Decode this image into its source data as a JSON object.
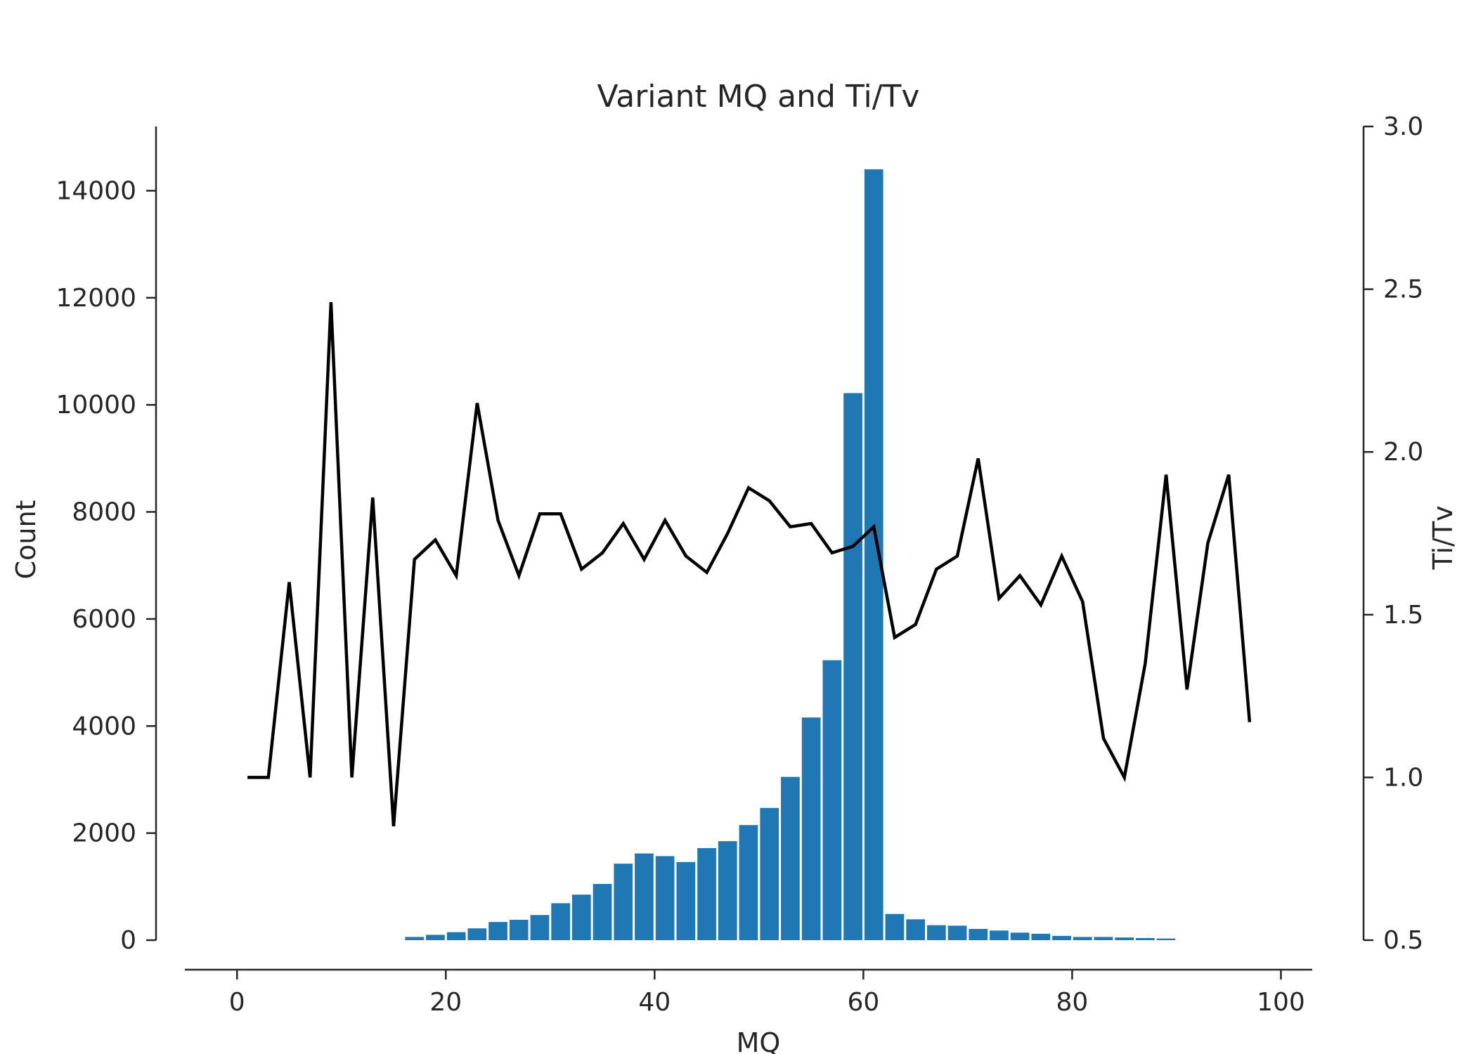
{
  "chart_data": {
    "type": "bar",
    "title": "Variant MQ and Ti/Tv",
    "xlabel": "MQ",
    "ylabel": "Count",
    "y2label": "Ti/Tv",
    "xlim": [
      -5,
      103
    ],
    "ylim": [
      0,
      15200
    ],
    "y2lim": [
      0.5,
      3.0
    ],
    "xticks": [
      0,
      20,
      40,
      60,
      80,
      100
    ],
    "yticks": [
      0,
      2000,
      4000,
      6000,
      8000,
      10000,
      12000,
      14000
    ],
    "y2ticks": [
      "0.5",
      "1.0",
      "1.5",
      "2.0",
      "2.5",
      "3.0"
    ],
    "grid": false,
    "colors": {
      "bars": "#1f77b4",
      "line": "#000000",
      "axes": "#262626"
    },
    "bar_series": {
      "name": "Count",
      "bin_width": 2,
      "x": [
        17,
        19,
        21,
        23,
        25,
        27,
        29,
        31,
        33,
        35,
        37,
        39,
        41,
        43,
        45,
        47,
        49,
        51,
        53,
        55,
        57,
        59,
        61,
        63,
        65,
        67,
        69,
        71,
        73,
        75,
        77,
        79,
        81,
        83,
        85,
        87,
        89
      ],
      "values": [
        60,
        100,
        150,
        220,
        340,
        380,
        470,
        690,
        850,
        1050,
        1430,
        1620,
        1570,
        1460,
        1720,
        1850,
        2150,
        2470,
        3050,
        4160,
        5230,
        10220,
        14400,
        490,
        390,
        280,
        270,
        210,
        180,
        140,
        120,
        80,
        60,
        60,
        50,
        40,
        30
      ]
    },
    "line_series": {
      "name": "Ti/Tv",
      "x": [
        1,
        3,
        5,
        7,
        9,
        11,
        13,
        15,
        17,
        19,
        21,
        23,
        25,
        27,
        29,
        31,
        33,
        35,
        37,
        39,
        41,
        43,
        45,
        47,
        49,
        51,
        53,
        55,
        57,
        59,
        61,
        63,
        65,
        67,
        69,
        71,
        73,
        75,
        77,
        79,
        81,
        83,
        85,
        87,
        89,
        91,
        93,
        95,
        97
      ],
      "values": [
        1.0,
        1.0,
        1.6,
        1.0,
        2.46,
        1.0,
        1.86,
        0.85,
        1.67,
        1.73,
        1.62,
        2.15,
        1.79,
        1.62,
        1.81,
        1.81,
        1.64,
        1.69,
        1.78,
        1.67,
        1.79,
        1.68,
        1.63,
        1.75,
        1.89,
        1.85,
        1.77,
        1.78,
        1.69,
        1.71,
        1.77,
        1.43,
        1.47,
        1.64,
        1.68,
        1.98,
        1.55,
        1.62,
        1.53,
        1.68,
        1.54,
        1.12,
        1.0,
        1.35,
        1.93,
        1.27,
        1.72,
        1.93,
        1.17
      ]
    }
  }
}
